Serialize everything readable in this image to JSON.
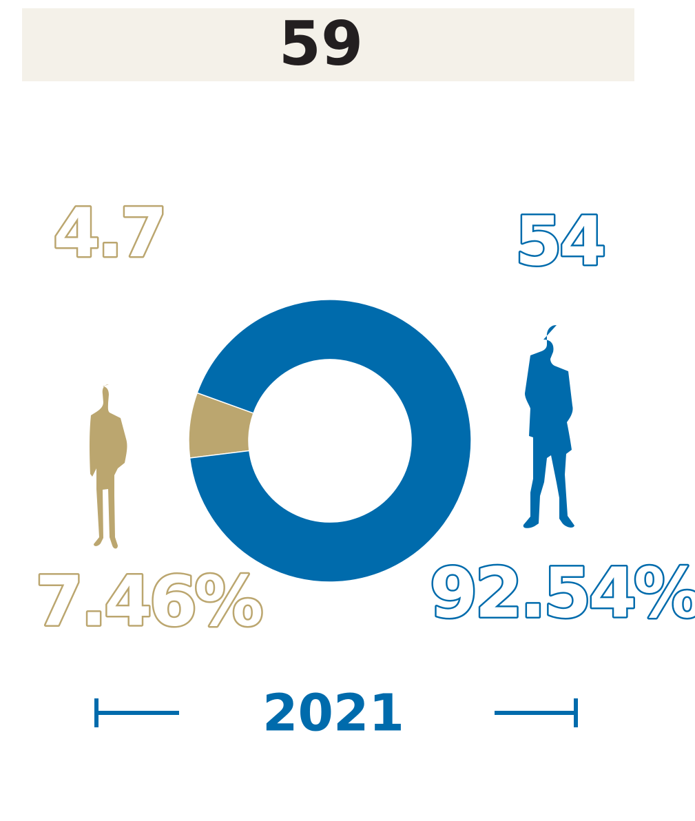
{
  "chart_data": {
    "type": "donut",
    "title": "59",
    "categories": [
      null,
      null
    ],
    "values": [
      7.46,
      92.54
    ],
    "value_labels": [
      "7.46%",
      "92.54%"
    ],
    "colors": [
      "#bba66f",
      "#006bac"
    ],
    "counts": [
      4.7,
      54
    ],
    "footer": "2021"
  }
}
